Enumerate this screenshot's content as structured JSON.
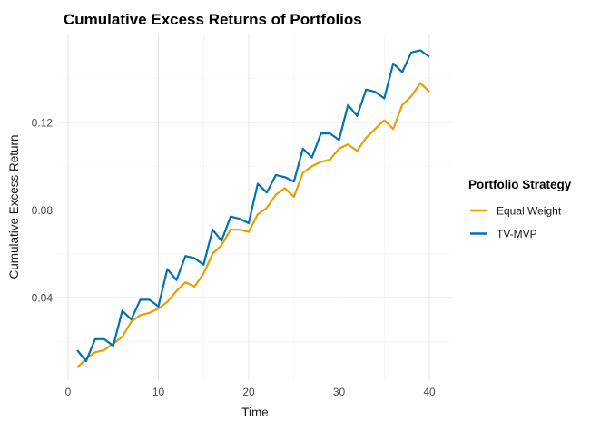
{
  "chart_data": {
    "type": "line",
    "title": "Cumulative Excess Returns of Portfolios",
    "xlabel": "Time",
    "ylabel": "Cumulative Excess Return",
    "legend_title": "Portfolio Strategy",
    "legend_position": "right",
    "grid": "major+minor",
    "background": "#ffffff",
    "xlim": [
      -1.1,
      42.4
    ],
    "ylim": [
      0.002,
      0.16
    ],
    "x_major_ticks": [
      0,
      10,
      20,
      30,
      40
    ],
    "x_minor_ticks": [
      5,
      15,
      25,
      35
    ],
    "y_major_ticks": [
      0.04,
      0.08,
      0.12
    ],
    "y_major_tick_labels": [
      "0.04",
      "0.08",
      "0.12"
    ],
    "y_minor_ticks": [
      0.02,
      0.06,
      0.1,
      0.14
    ],
    "x": [
      1,
      2,
      3,
      4,
      5,
      6,
      7,
      8,
      9,
      10,
      11,
      12,
      13,
      14,
      15,
      16,
      17,
      18,
      19,
      20,
      21,
      22,
      23,
      24,
      25,
      26,
      27,
      28,
      29,
      30,
      31,
      32,
      33,
      34,
      35,
      36,
      37,
      38,
      39,
      40
    ],
    "series": [
      {
        "name": "Equal Weight",
        "color": "#E69F00",
        "values": [
          0.008,
          0.012,
          0.015,
          0.016,
          0.019,
          0.022,
          0.029,
          0.032,
          0.033,
          0.035,
          0.038,
          0.043,
          0.047,
          0.045,
          0.051,
          0.06,
          0.064,
          0.071,
          0.071,
          0.07,
          0.078,
          0.081,
          0.087,
          0.09,
          0.086,
          0.097,
          0.1,
          0.102,
          0.103,
          0.108,
          0.11,
          0.107,
          0.113,
          0.117,
          0.121,
          0.117,
          0.128,
          0.132,
          0.138,
          0.134
        ]
      },
      {
        "name": "TV-MVP",
        "color": "#0072B2",
        "values": [
          0.016,
          0.011,
          0.021,
          0.021,
          0.018,
          0.034,
          0.03,
          0.039,
          0.039,
          0.036,
          0.053,
          0.048,
          0.059,
          0.058,
          0.055,
          0.071,
          0.066,
          0.077,
          0.076,
          0.074,
          0.092,
          0.088,
          0.096,
          0.095,
          0.093,
          0.108,
          0.104,
          0.115,
          0.115,
          0.112,
          0.128,
          0.123,
          0.135,
          0.134,
          0.131,
          0.147,
          0.143,
          0.152,
          0.153,
          0.15
        ]
      }
    ]
  }
}
